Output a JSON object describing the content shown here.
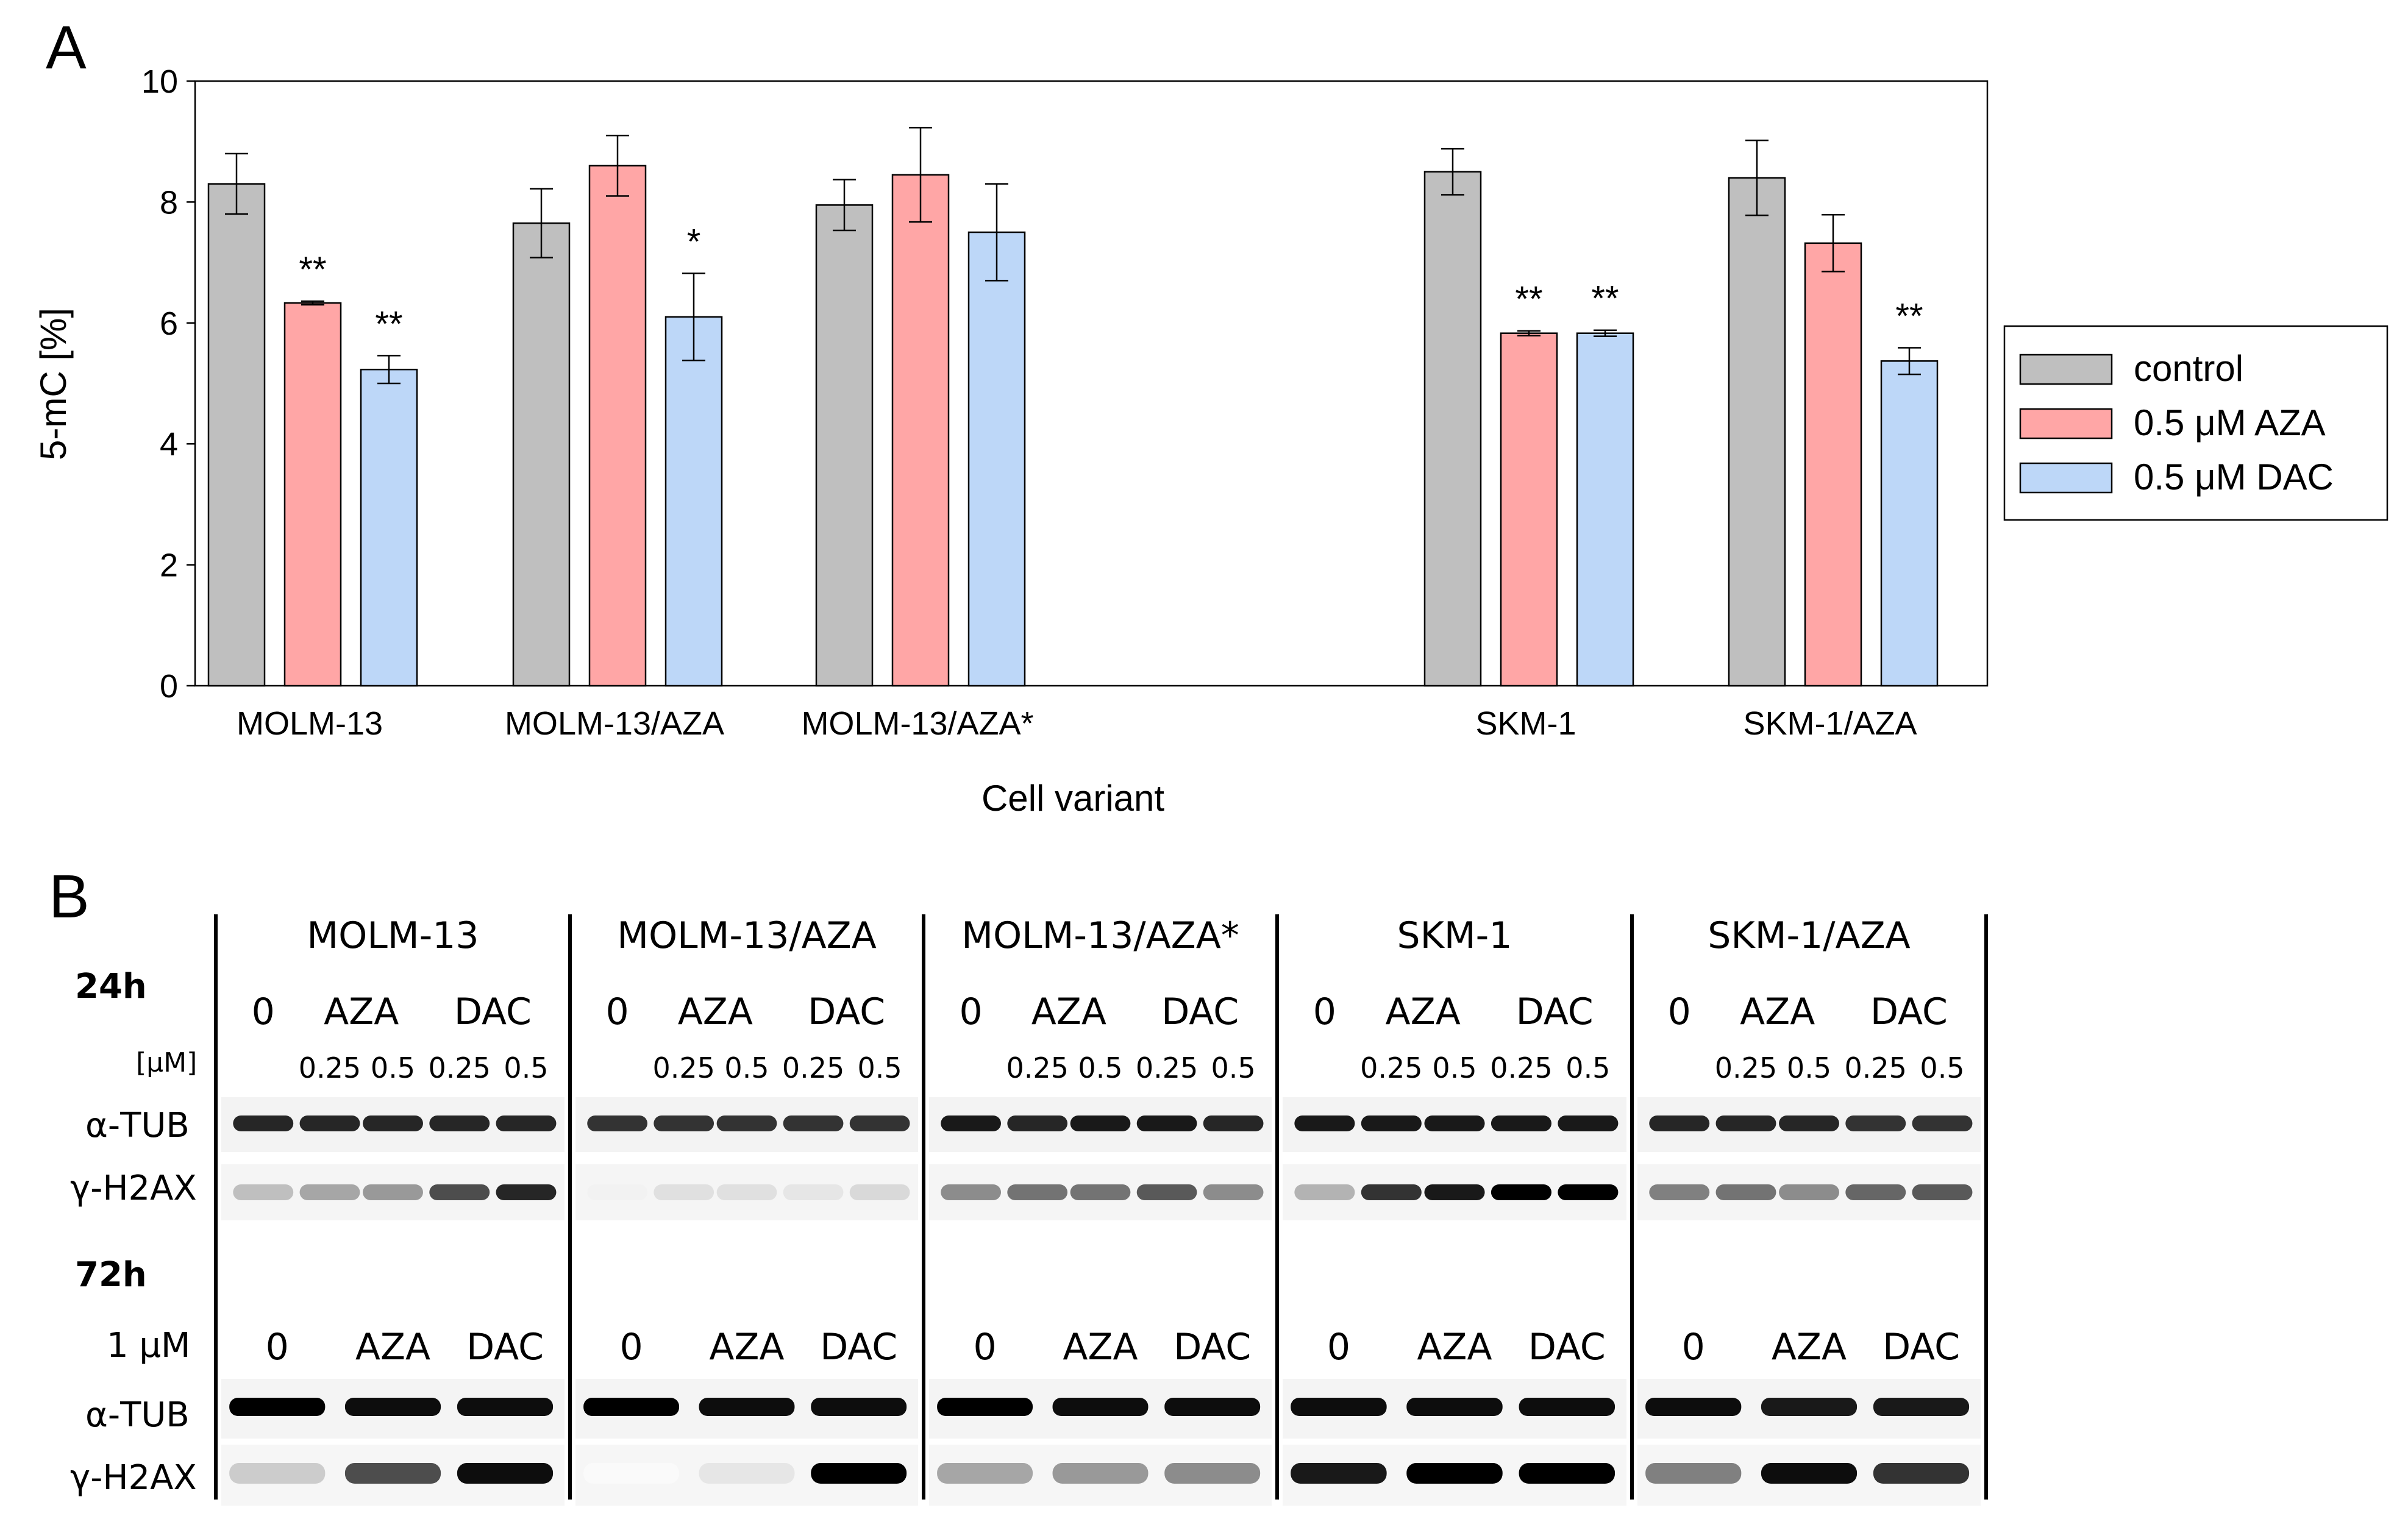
{
  "panel_a_letter": "A",
  "panel_b_letter": "B",
  "chart_data": {
    "type": "bar",
    "title": "",
    "xlabel": "Cell variant",
    "ylabel": "5-mC [%]",
    "ylim": [
      0,
      10
    ],
    "yticks": [
      "0",
      "2",
      "4",
      "6",
      "8",
      "10"
    ],
    "grid": false,
    "legend_position": "right",
    "categories": [
      "MOLM-13",
      "MOLM-13/AZA",
      "MOLM-13/AZA*",
      "SKM-1",
      "SKM-1/AZA"
    ],
    "series": [
      {
        "name": "control",
        "color": "#bfbfbf",
        "values": [
          8.3,
          7.65,
          7.95,
          8.5,
          8.4
        ],
        "errors": [
          0.5,
          0.57,
          0.42,
          0.38,
          0.62
        ],
        "annotations": [
          "",
          "",
          "",
          "",
          ""
        ]
      },
      {
        "name": "0.5 μM AZA",
        "color": "#ffa6a6",
        "values": [
          6.33,
          8.6,
          8.45,
          5.83,
          7.32
        ],
        "errors": [
          0.03,
          0.5,
          0.78,
          0.04,
          0.47
        ],
        "annotations": [
          "**",
          "",
          "",
          "**",
          ""
        ]
      },
      {
        "name": "0.5 μM DAC",
        "color": "#bdd7f8",
        "values": [
          5.23,
          6.1,
          7.5,
          5.83,
          5.37
        ],
        "errors": [
          0.23,
          0.72,
          0.8,
          0.05,
          0.22
        ],
        "annotations": [
          "**",
          "*",
          "",
          "**",
          "**"
        ]
      }
    ]
  },
  "blot": {
    "groups": [
      "MOLM-13",
      "MOLM-13/AZA",
      "MOLM-13/AZA*",
      "SKM-1",
      "SKM-1/AZA"
    ],
    "row_24h": {
      "time_label": "24h",
      "unit_label": "[μM]",
      "treatments": [
        "0",
        "AZA",
        "DAC"
      ],
      "doses": [
        "0.25",
        "0.5",
        "0.25",
        "0.5"
      ],
      "bands": [
        "α-TUB",
        "γ-H2AX"
      ],
      "tub_intensity": [
        [
          0.85,
          0.85,
          0.85,
          0.85,
          0.85
        ],
        [
          0.8,
          0.8,
          0.8,
          0.8,
          0.8
        ],
        [
          0.9,
          0.85,
          0.9,
          0.9,
          0.85
        ],
        [
          0.9,
          0.9,
          0.9,
          0.9,
          0.9
        ],
        [
          0.85,
          0.85,
          0.85,
          0.8,
          0.8
        ]
      ],
      "h2ax_intensity": [
        [
          0.25,
          0.35,
          0.4,
          0.7,
          0.85
        ],
        [
          0.05,
          0.12,
          0.12,
          0.1,
          0.15
        ],
        [
          0.45,
          0.55,
          0.55,
          0.65,
          0.45
        ],
        [
          0.3,
          0.8,
          0.9,
          1.0,
          1.0
        ],
        [
          0.5,
          0.55,
          0.45,
          0.6,
          0.65
        ]
      ]
    },
    "row_72h": {
      "time_label": "72h",
      "dose_label": "1 μM",
      "treatments": [
        "0",
        "AZA",
        "DAC"
      ],
      "bands": [
        "α-TUB",
        "γ-H2AX"
      ],
      "tub_intensity": [
        [
          1.0,
          0.95,
          0.95
        ],
        [
          1.0,
          0.95,
          0.95
        ],
        [
          1.0,
          0.95,
          0.95
        ],
        [
          0.95,
          0.95,
          0.95
        ],
        [
          0.95,
          0.9,
          0.9
        ]
      ],
      "h2ax_intensity": [
        [
          0.2,
          0.7,
          0.95
        ],
        [
          0.02,
          0.1,
          1.0
        ],
        [
          0.35,
          0.4,
          0.45
        ],
        [
          0.9,
          1.0,
          1.0
        ],
        [
          0.5,
          0.95,
          0.8
        ]
      ]
    }
  }
}
